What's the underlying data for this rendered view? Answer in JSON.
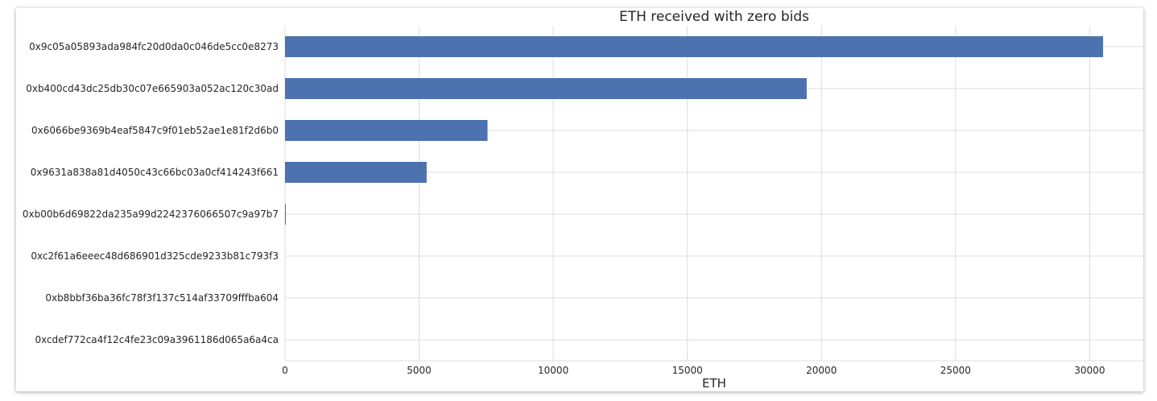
{
  "chart_data": {
    "type": "bar",
    "orientation": "horizontal",
    "title": "ETH received with zero bids",
    "xlabel": "ETH",
    "ylabel": "",
    "xlim": [
      0,
      32000
    ],
    "xticks": [
      0,
      5000,
      10000,
      15000,
      20000,
      25000,
      30000
    ],
    "categories": [
      "0x9c05a05893ada984fc20d0da0c046de5cc0e8273",
      "0xb400cd43dc25db30c07e665903a052ac120c30ad",
      "0x6066be9369b4eaf5847c9f01eb52ae1e81f2d6b0",
      "0x9631a838a81d4050c43c66bc03a0cf414243f661",
      "0xb00b6d69822da235a99d2242376066507c9a97b7",
      "0xc2f61a6eeec48d686901d325cde9233b81c793f3",
      "0xb8bbf36ba36fc78f3f137c514af33709fffba604",
      "0xcdef772ca4f12c4fe23c09a3961186d065a6a4ca"
    ],
    "values": [
      30500,
      19450,
      7550,
      5280,
      30,
      0,
      0,
      0
    ],
    "grid": true,
    "color": "#4c72b0"
  }
}
